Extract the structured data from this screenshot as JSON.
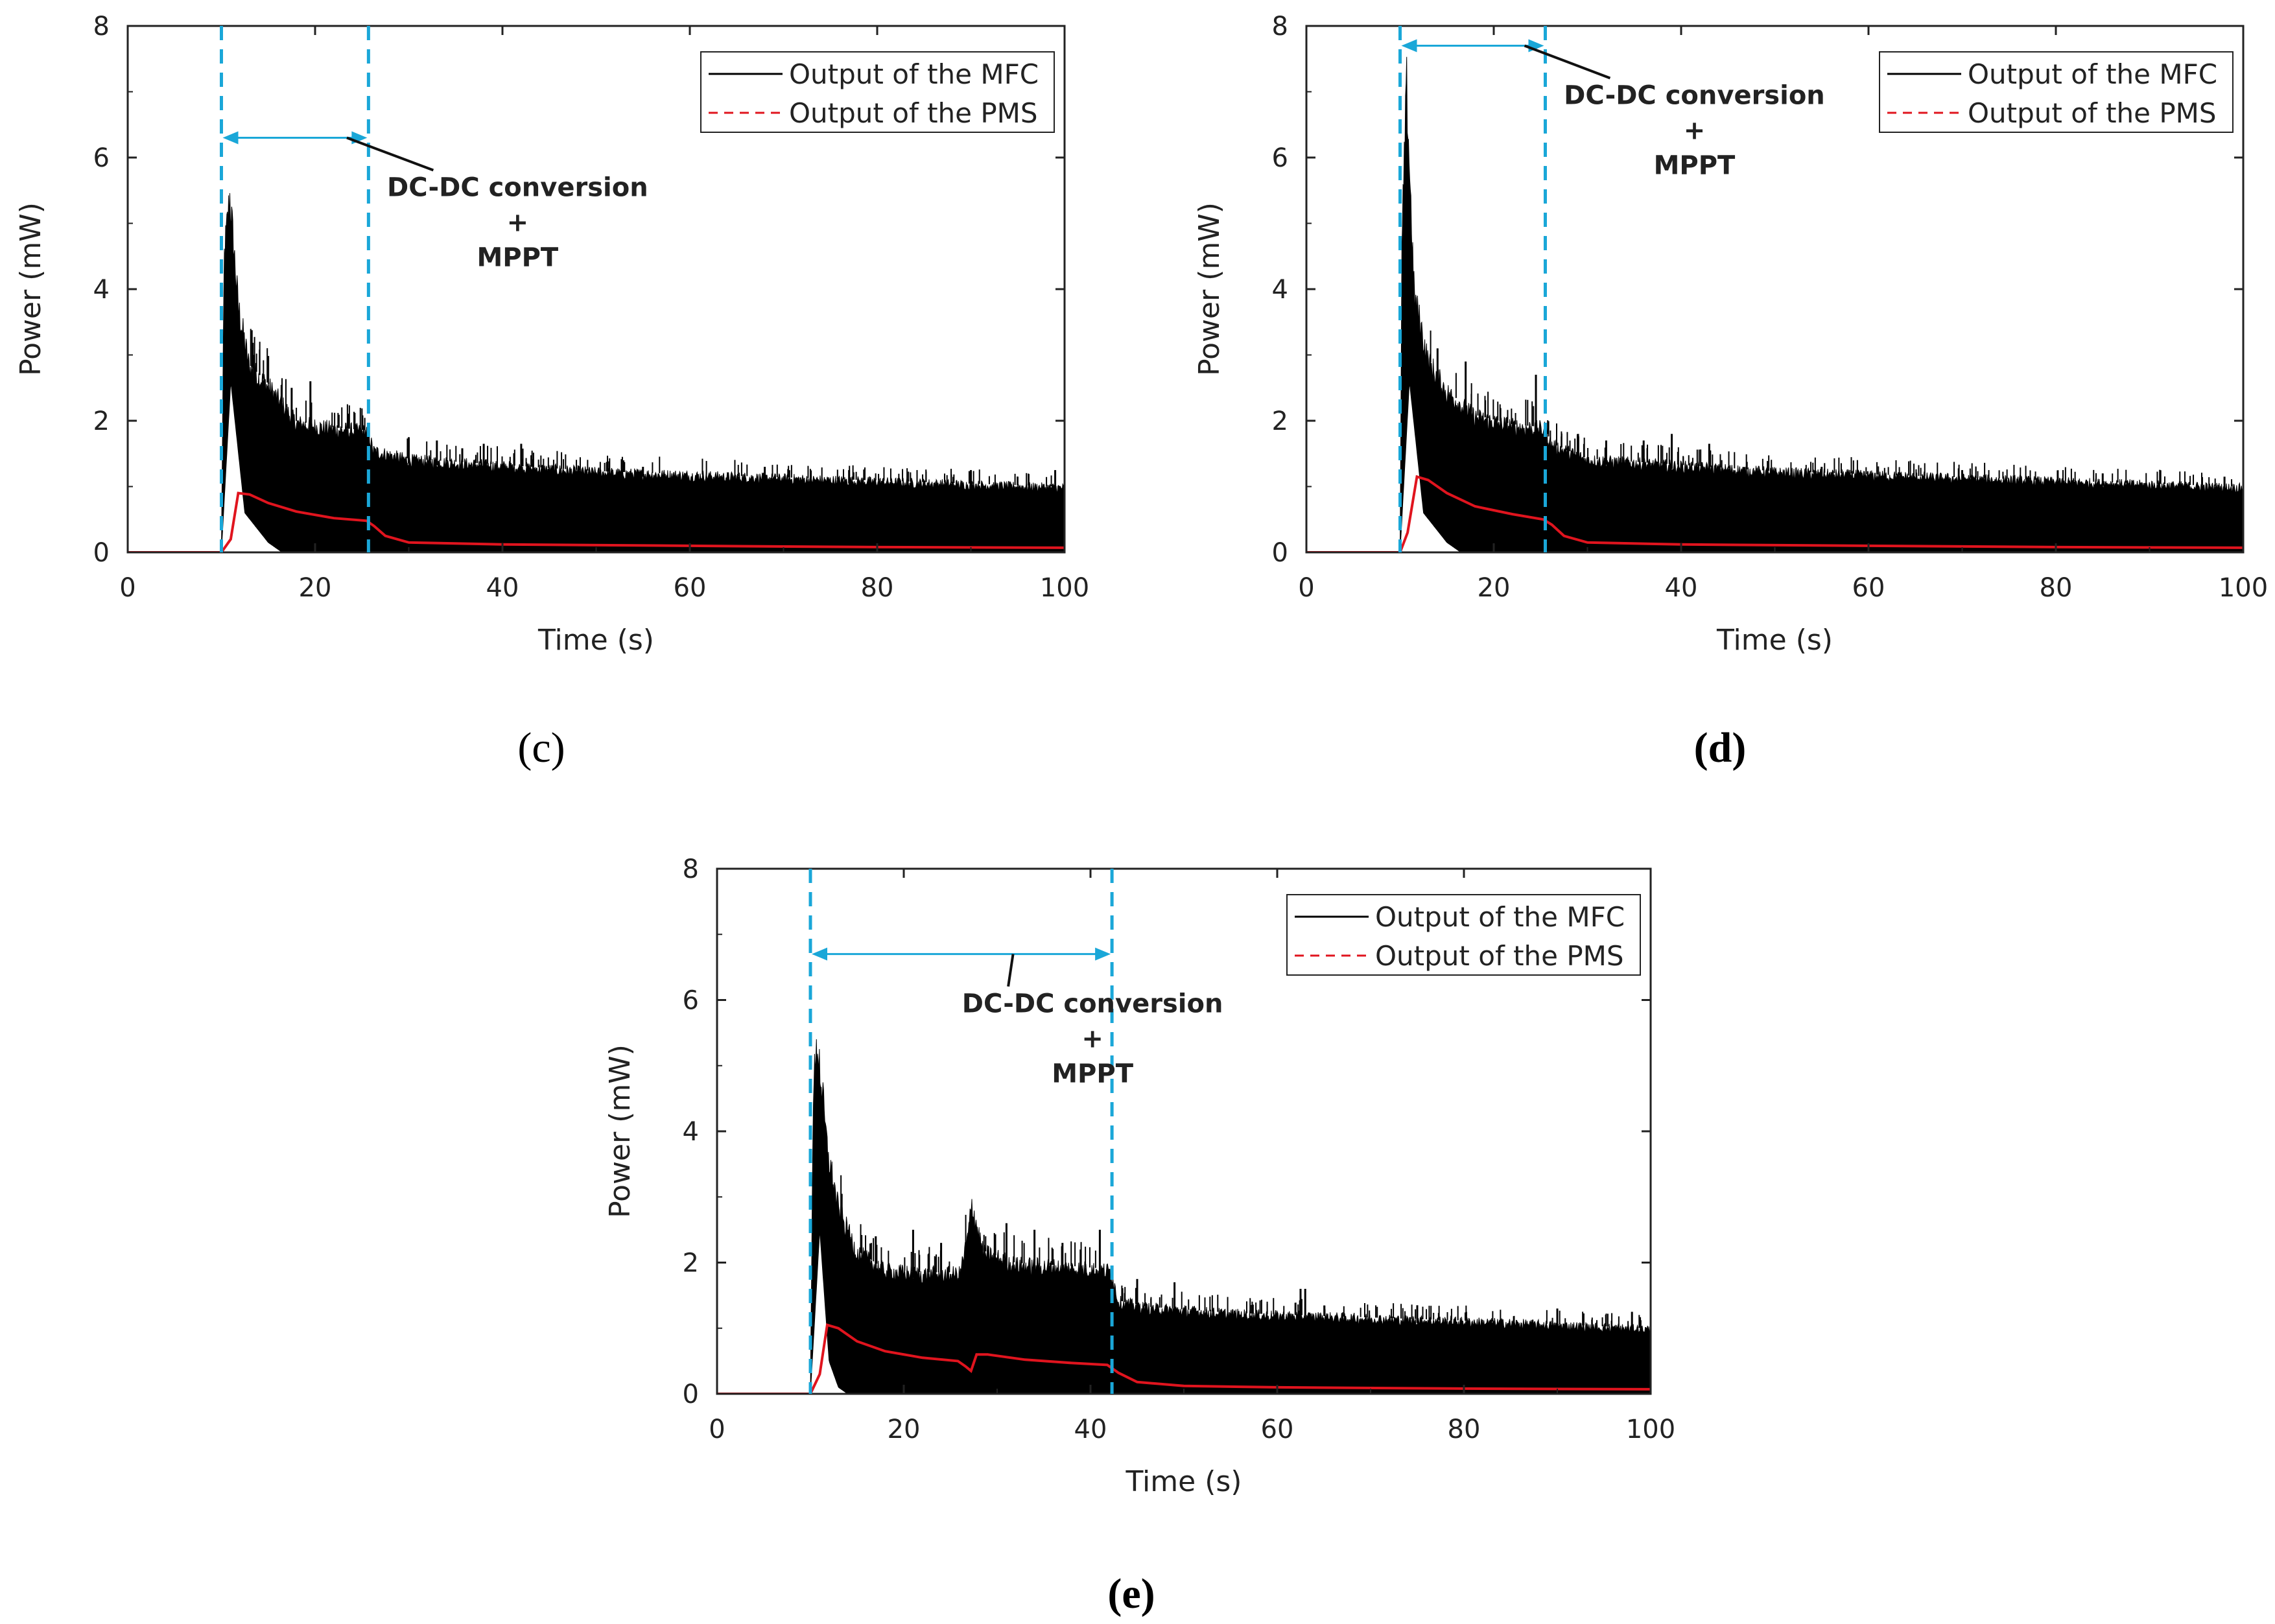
{
  "figure": {
    "panel_labels": {
      "c": "(c)",
      "d": "(d)",
      "e": "(e)"
    }
  },
  "colors": {
    "mfc": "#000000",
    "pms": "#e0141e",
    "guide": "#1aa7d8",
    "axis": "#222222"
  },
  "chart_data": [
    {
      "id": "c",
      "type": "line",
      "xlabel": "Time (s)",
      "ylabel": "Power (mW)",
      "xlim": [
        0,
        100
      ],
      "ylim": [
        0,
        8
      ],
      "xticks": [
        0,
        20,
        40,
        60,
        80,
        100
      ],
      "yticks": [
        0,
        2,
        4,
        6,
        8
      ],
      "legend_position": "top-right",
      "annotation": {
        "lines": [
          "DC-DC conversion",
          "+",
          "MPPT"
        ],
        "start": 10,
        "end": 25.7,
        "arrow_y": 6.3
      },
      "series": [
        {
          "name": "Output of the MFC",
          "style": "solid",
          "points": [
            [
              0,
              0
            ],
            [
              10,
              0
            ],
            [
              10.3,
              4.8
            ],
            [
              10.9,
              5.8
            ],
            [
              11.8,
              4.0
            ],
            [
              13,
              3.0
            ],
            [
              15,
              2.7
            ],
            [
              18,
              2.1
            ],
            [
              22,
              2.0
            ],
            [
              25.7,
              1.95
            ],
            [
              26.2,
              1.65
            ],
            [
              30,
              1.5
            ],
            [
              40,
              1.4
            ],
            [
              50,
              1.3
            ],
            [
              60,
              1.25
            ],
            [
              70,
              1.2
            ],
            [
              80,
              1.15
            ],
            [
              90,
              1.1
            ],
            [
              100,
              1.05
            ]
          ],
          "noise_floor": [
            [
              0,
              0
            ],
            [
              10,
              0
            ],
            [
              11,
              2.6
            ],
            [
              12.5,
              0.6
            ],
            [
              15,
              0.15
            ],
            [
              16.5,
              0
            ],
            [
              100,
              0
            ]
          ],
          "spikes": [
            [
              13.5,
              3.0
            ],
            [
              17.5,
              2.5
            ],
            [
              19.5,
              2.6
            ],
            [
              30,
              1.75
            ],
            [
              33,
              1.7
            ],
            [
              38,
              1.65
            ],
            [
              42,
              1.65
            ],
            [
              55,
              1.3
            ],
            [
              68,
              1.3
            ],
            [
              77,
              1.25
            ],
            [
              90,
              1.25
            ],
            [
              99,
              1.25
            ]
          ]
        },
        {
          "name": "Output of the PMS",
          "style": "dashed",
          "points": [
            [
              0,
              0
            ],
            [
              10,
              0
            ],
            [
              11,
              0.2
            ],
            [
              11.8,
              0.9
            ],
            [
              13,
              0.88
            ],
            [
              15,
              0.75
            ],
            [
              18,
              0.62
            ],
            [
              22,
              0.52
            ],
            [
              25.5,
              0.48
            ],
            [
              26.3,
              0.4
            ],
            [
              27.5,
              0.25
            ],
            [
              30,
              0.15
            ],
            [
              40,
              0.12
            ],
            [
              60,
              0.1
            ],
            [
              80,
              0.08
            ],
            [
              100,
              0.07
            ]
          ]
        }
      ]
    },
    {
      "id": "d",
      "type": "line",
      "xlabel": "Time (s)",
      "ylabel": "Power (mW)",
      "xlim": [
        0,
        100
      ],
      "ylim": [
        0,
        8
      ],
      "xticks": [
        0,
        20,
        40,
        60,
        80,
        100
      ],
      "yticks": [
        0,
        2,
        4,
        6,
        8
      ],
      "legend_position": "top-right",
      "annotation": {
        "lines": [
          "DC-DC conversion",
          "+",
          "MPPT"
        ],
        "start": 10,
        "end": 25.5,
        "arrow_y": 7.7
      },
      "series": [
        {
          "name": "Output of the MFC",
          "style": "solid",
          "points": [
            [
              0,
              0
            ],
            [
              10,
              0
            ],
            [
              10.2,
              5.0
            ],
            [
              10.7,
              7.6
            ],
            [
              11.5,
              4.2
            ],
            [
              13,
              3.1
            ],
            [
              15,
              2.6
            ],
            [
              18,
              2.2
            ],
            [
              22,
              2.05
            ],
            [
              25.5,
              2.0
            ],
            [
              26.1,
              1.75
            ],
            [
              30,
              1.5
            ],
            [
              40,
              1.4
            ],
            [
              50,
              1.3
            ],
            [
              60,
              1.25
            ],
            [
              70,
              1.2
            ],
            [
              80,
              1.15
            ],
            [
              90,
              1.1
            ],
            [
              100,
              1.05
            ]
          ],
          "noise_floor": [
            [
              0,
              0
            ],
            [
              10,
              0
            ],
            [
              11,
              2.6
            ],
            [
              12.5,
              0.6
            ],
            [
              15,
              0.15
            ],
            [
              16.5,
              0
            ],
            [
              100,
              0
            ]
          ],
          "spikes": [
            [
              14,
              3.1
            ],
            [
              17,
              2.9
            ],
            [
              24.5,
              2.7
            ],
            [
              29,
              1.8
            ],
            [
              32,
              1.7
            ],
            [
              36,
              1.7
            ],
            [
              39,
              1.8
            ],
            [
              43,
              1.65
            ],
            [
              55,
              1.3
            ],
            [
              70,
              1.25
            ],
            [
              85,
              1.2
            ],
            [
              98,
              1.15
            ]
          ]
        },
        {
          "name": "Output of the PMS",
          "style": "dashed",
          "points": [
            [
              0,
              0
            ],
            [
              10,
              0
            ],
            [
              10.8,
              0.3
            ],
            [
              11.8,
              1.15
            ],
            [
              13,
              1.1
            ],
            [
              15,
              0.9
            ],
            [
              18,
              0.7
            ],
            [
              22,
              0.58
            ],
            [
              25.3,
              0.5
            ],
            [
              26.2,
              0.42
            ],
            [
              27.5,
              0.25
            ],
            [
              30,
              0.15
            ],
            [
              40,
              0.12
            ],
            [
              60,
              0.1
            ],
            [
              80,
              0.08
            ],
            [
              100,
              0.07
            ]
          ]
        }
      ]
    },
    {
      "id": "e",
      "type": "line",
      "xlabel": "Time (s)",
      "ylabel": "Power (mW)",
      "xlim": [
        0,
        100
      ],
      "ylim": [
        0,
        8
      ],
      "xticks": [
        0,
        20,
        40,
        60,
        80,
        100
      ],
      "yticks": [
        0,
        2,
        4,
        6,
        8
      ],
      "legend_position": "top-right",
      "annotation": {
        "lines": [
          "DC-DC conversion",
          "+",
          "MPPT"
        ],
        "start": 10,
        "end": 42.3,
        "arrow_y": 6.7
      },
      "series": [
        {
          "name": "Output of the MFC",
          "style": "solid",
          "points": [
            [
              0,
              0
            ],
            [
              10,
              0
            ],
            [
              10.3,
              5.0
            ],
            [
              10.8,
              5.7
            ],
            [
              11.8,
              4.0
            ],
            [
              13,
              3.0
            ],
            [
              15,
              2.3
            ],
            [
              18,
              2.0
            ],
            [
              22,
              1.95
            ],
            [
              26,
              1.95
            ],
            [
              26.8,
              2.5
            ],
            [
              27.3,
              3.1
            ],
            [
              28.5,
              2.3
            ],
            [
              32,
              2.1
            ],
            [
              38,
              2.05
            ],
            [
              42.2,
              2.0
            ],
            [
              43,
              1.5
            ],
            [
              46,
              1.4
            ],
            [
              55,
              1.3
            ],
            [
              65,
              1.25
            ],
            [
              75,
              1.2
            ],
            [
              85,
              1.15
            ],
            [
              100,
              1.05
            ]
          ],
          "noise_floor": [
            [
              0,
              0
            ],
            [
              10,
              0
            ],
            [
              11,
              2.5
            ],
            [
              12,
              0.5
            ],
            [
              13,
              0.1
            ],
            [
              14,
              0
            ],
            [
              100,
              0
            ]
          ],
          "spikes": [
            [
              14,
              2.5
            ],
            [
              17,
              2.4
            ],
            [
              21,
              2.5
            ],
            [
              24,
              2.3
            ],
            [
              31,
              2.6
            ],
            [
              34,
              2.5
            ],
            [
              37,
              2.3
            ],
            [
              41,
              2.5
            ],
            [
              45,
              1.75
            ],
            [
              49,
              1.7
            ],
            [
              62.5,
              1.6
            ],
            [
              63,
              1.6
            ],
            [
              75,
              1.35
            ],
            [
              90,
              1.3
            ],
            [
              98,
              1.25
            ]
          ]
        },
        {
          "name": "Output of the PMS",
          "style": "dashed",
          "points": [
            [
              0,
              0
            ],
            [
              10,
              0
            ],
            [
              11,
              0.3
            ],
            [
              11.8,
              1.05
            ],
            [
              13,
              1.0
            ],
            [
              15,
              0.8
            ],
            [
              18,
              0.65
            ],
            [
              22,
              0.55
            ],
            [
              25.8,
              0.5
            ],
            [
              26.6,
              0.42
            ],
            [
              27.2,
              0.35
            ],
            [
              27.8,
              0.6
            ],
            [
              29,
              0.6
            ],
            [
              33,
              0.52
            ],
            [
              38,
              0.47
            ],
            [
              41.8,
              0.44
            ],
            [
              43,
              0.32
            ],
            [
              45,
              0.18
            ],
            [
              50,
              0.12
            ],
            [
              60,
              0.1
            ],
            [
              80,
              0.08
            ],
            [
              100,
              0.07
            ]
          ]
        }
      ]
    }
  ]
}
